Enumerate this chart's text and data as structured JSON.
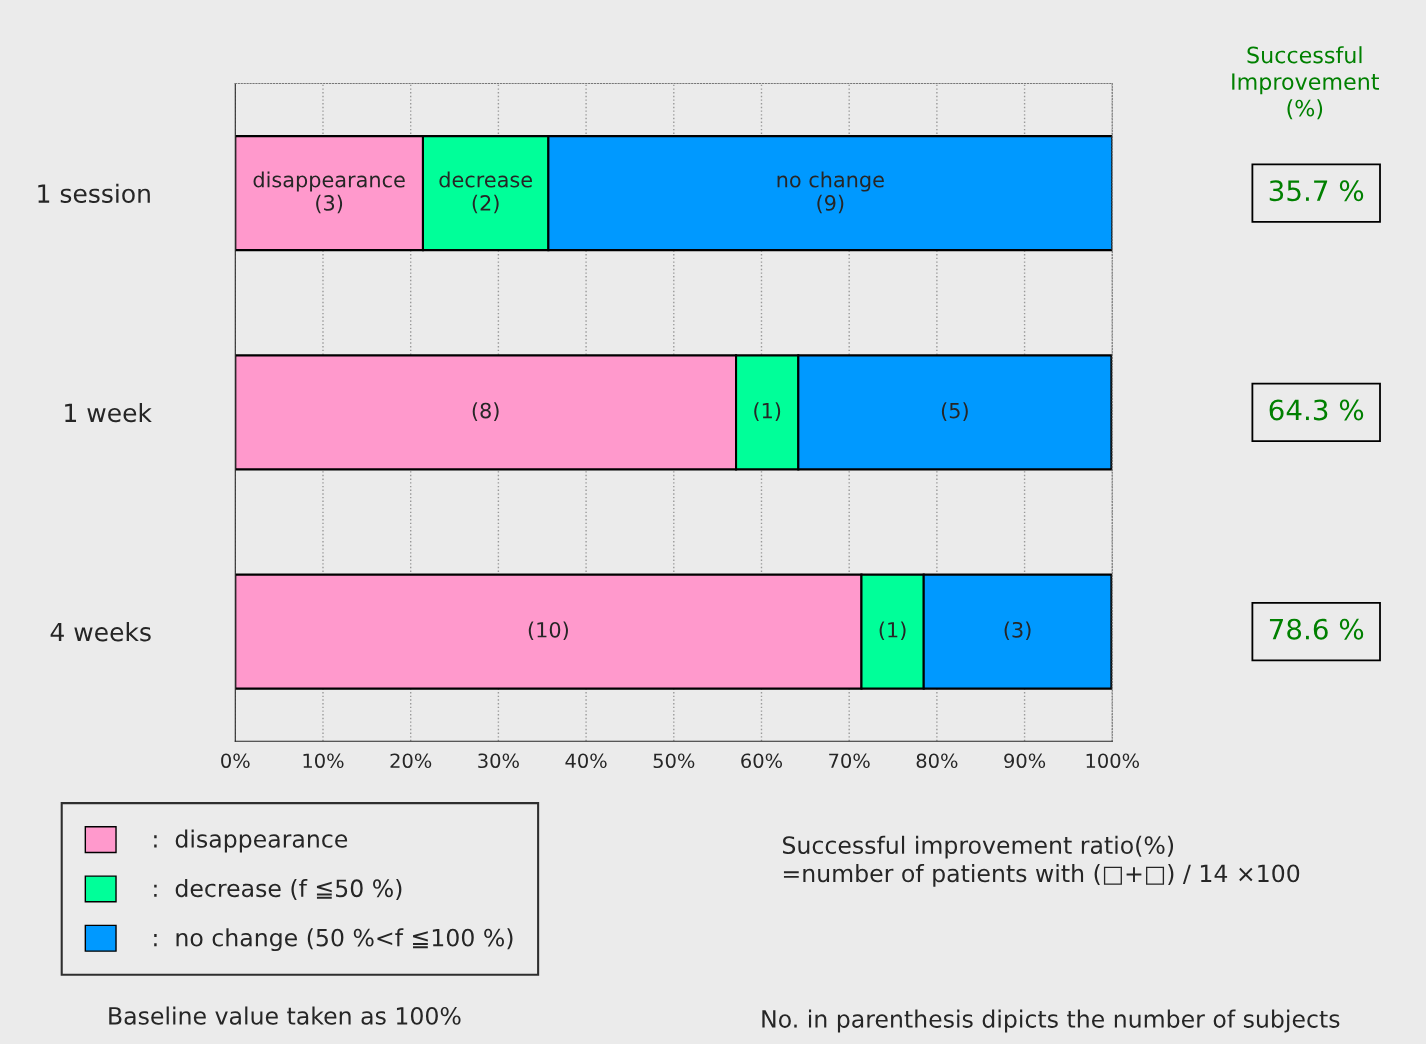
{
  "chart_data": {
    "type": "bar",
    "orientation": "horizontal",
    "stacked": true,
    "categories": [
      "1 session",
      "1 week",
      "4 weeks"
    ],
    "series": [
      {
        "name": ":  disappearance",
        "color": "#ff99cc",
        "values": [
          21.4,
          57.1,
          71.4
        ]
      },
      {
        "name": ":  decrease (f ≦50 %)",
        "color": "#00ff99",
        "values": [
          14.3,
          7.1,
          7.1
        ]
      },
      {
        "name": ":  no change (50 %<f ≦100 %)",
        "color": "#0099ff",
        "values": [
          64.3,
          35.7,
          21.4
        ]
      }
    ],
    "xlim": [
      0,
      100
    ],
    "xticks": [
      {
        "value": 0,
        "label": "0%"
      },
      {
        "value": 10,
        "label": "10%"
      },
      {
        "value": 20,
        "label": "20%"
      },
      {
        "value": 30,
        "label": "30%"
      },
      {
        "value": 40,
        "label": "40%"
      },
      {
        "value": 50,
        "label": "50%"
      },
      {
        "value": 60,
        "label": "60%"
      },
      {
        "value": 70,
        "label": "70%"
      },
      {
        "value": 80,
        "label": "80%"
      },
      {
        "value": 90,
        "label": "90%"
      },
      {
        "value": 100,
        "label": "100%"
      }
    ],
    "grid": "x",
    "legend": "bottom left",
    "annotations": [
      "Successful\nImprovement\n(%)",
      "35.7 %",
      "64.3 %",
      "78.6 %",
      "Baseline value taken as 100%",
      "Successful improvement ratio(%)\n=number of patients with (□+□) / 14 ×100",
      "No. in parenthesis dipicts the number of subjects",
      "disappearance\n(3)",
      "decrease\n(2)",
      "no change\n(9)",
      "(8)",
      "(1)",
      "(5)",
      "(10)",
      "(1)",
      "(3)"
    ]
  }
}
